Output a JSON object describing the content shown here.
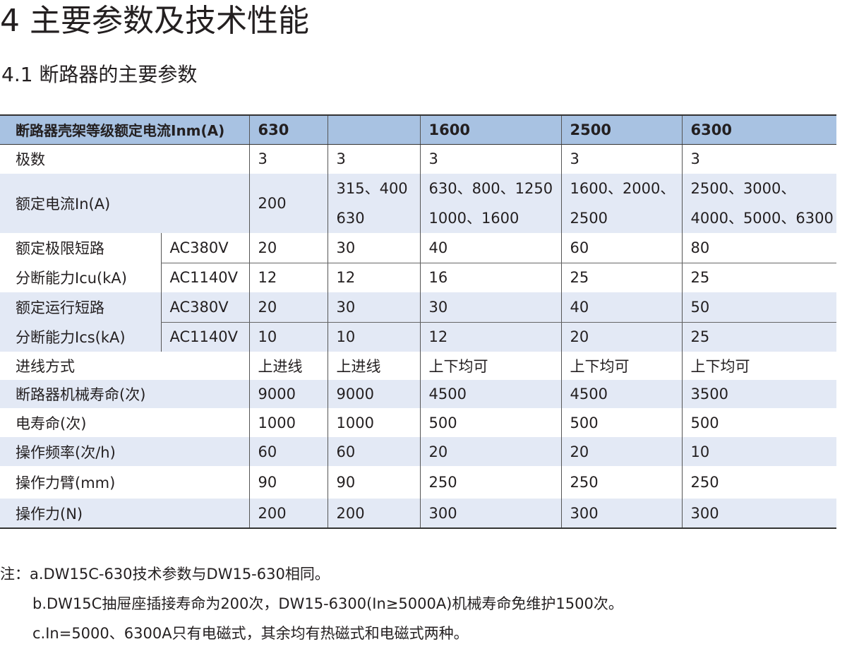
{
  "heading": "4 主要参数及技术性能",
  "subheading": "4.1 断路器的主要参数",
  "table": {
    "header": {
      "label": "断路器壳架等级额定电流Inm(A)",
      "cols": [
        "630",
        "",
        "1600",
        "2500",
        "6300"
      ]
    },
    "poles": {
      "label": "极数",
      "values": [
        "3",
        "3",
        "3",
        "3",
        "3"
      ]
    },
    "rated_current": {
      "label": "额定电流In(A)",
      "values": [
        [
          "200",
          ""
        ],
        [
          "315、400",
          "630"
        ],
        [
          "630、800、1250",
          "1000、1600"
        ],
        [
          "1600、2000、",
          "2500"
        ],
        [
          "2500、3000、",
          "4000、5000、6300"
        ]
      ]
    },
    "icu": {
      "label_1": "额定极限短路",
      "label_2": "分断能力Icu(kA)",
      "v380": "AC380V",
      "v1140": "AC1140V",
      "values_380": [
        "20",
        "30",
        "40",
        "60",
        "80"
      ],
      "values_1140": [
        "12",
        "12",
        "16",
        "25",
        "25"
      ]
    },
    "ics": {
      "label_1": "额定运行短路",
      "label_2": "分断能力Ics(kA)",
      "v380": "AC380V",
      "v1140": "AC1140V",
      "values_380": [
        "20",
        "30",
        "30",
        "40",
        "50"
      ],
      "values_1140": [
        "10",
        "10",
        "12",
        "20",
        "25"
      ]
    },
    "wiring": {
      "label": "进线方式",
      "values": [
        "上进线",
        "上进线",
        "上下均可",
        "上下均可",
        "上下均可"
      ]
    },
    "mech_life": {
      "label": "断路器机械寿命(次)",
      "values": [
        "9000",
        "9000",
        "4500",
        "4500",
        "3500"
      ]
    },
    "elec_life": {
      "label": "电寿命(次)",
      "values": [
        "1000",
        "1000",
        "500",
        "500",
        "500"
      ]
    },
    "op_freq": {
      "label": "操作频率(次/h)",
      "values": [
        "60",
        "60",
        "20",
        "20",
        "10"
      ]
    },
    "arm": {
      "label": "操作力臂(mm)",
      "values": [
        "90",
        "90",
        "250",
        "250",
        "250"
      ]
    },
    "force": {
      "label": "操作力(N)",
      "values": [
        "200",
        "200",
        "300",
        "300",
        "300"
      ]
    }
  },
  "notes": [
    "注：a.DW15C-630技术参数与DW15-630相同。",
    "b.DW15C抽屉座插接寿命为200次，DW15-6300(In≥5000A)机械寿命免维护1500次。",
    "c.In=5000、6300A只有电磁式，其余均有热磁式和电磁式两种。"
  ]
}
